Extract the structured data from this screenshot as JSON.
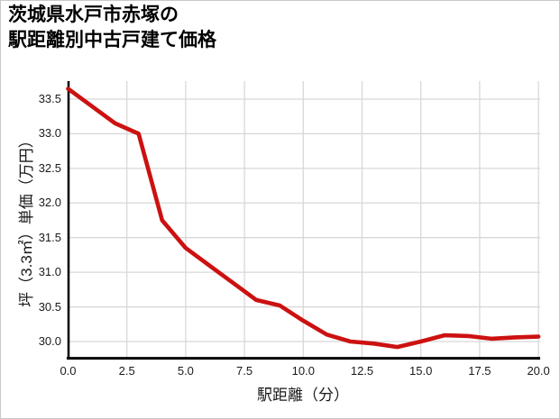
{
  "title": {
    "line1": "茨城県水戸市赤塚の",
    "line2": "駅距離別中古戸建て価格"
  },
  "chart_data": {
    "type": "line",
    "title": "茨城県水戸市赤塚の駅距離別中古戸建て価格",
    "xlabel": "駅距離（分）",
    "ylabel": "坪（3.3㎡）単価（万円）",
    "x": [
      0,
      1,
      2,
      3,
      4,
      5,
      6,
      7,
      8,
      9,
      10,
      11,
      12,
      13,
      14,
      15,
      16,
      17,
      18,
      19,
      20
    ],
    "values": [
      33.65,
      33.4,
      33.15,
      33.0,
      31.75,
      31.35,
      31.1,
      30.85,
      30.6,
      30.52,
      30.3,
      30.1,
      30.0,
      29.97,
      29.92,
      30.0,
      30.09,
      30.08,
      30.04,
      30.06,
      30.07
    ],
    "x_tick_labels": [
      "0.0",
      "2.5",
      "5.0",
      "7.5",
      "10.0",
      "12.5",
      "15.0",
      "17.5",
      "20.0"
    ],
    "y_tick_labels": [
      "30.0",
      "30.5",
      "31.0",
      "31.5",
      "32.0",
      "32.5",
      "33.0",
      "33.5"
    ],
    "xlim": [
      0,
      20
    ],
    "ylim": [
      29.74,
      33.76
    ],
    "grid": true,
    "legend_position": "none",
    "line_color": "#cc1111"
  },
  "colors": {
    "line": "#cc1111",
    "grid": "#d8d8d8",
    "axis": "#000000",
    "text": "#1a1a1a",
    "background": "#ffffff",
    "border": "#c9c9c9"
  }
}
